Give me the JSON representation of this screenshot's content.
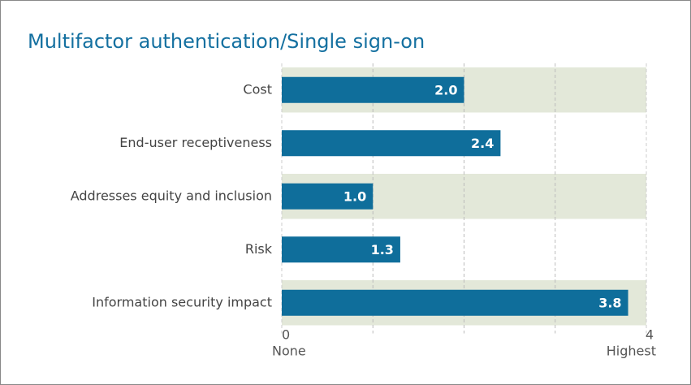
{
  "chart_data": {
    "type": "hbar",
    "title": "Multifactor authentication/Single sign-on",
    "categories": [
      "Cost",
      "End-user receptiveness",
      "Addresses equity and inclusion",
      "Risk",
      "Information security impact"
    ],
    "values": [
      2.0,
      2.4,
      1.0,
      1.3,
      3.8
    ],
    "value_labels": [
      "2.0",
      "2.4",
      "1.0",
      "1.3",
      "3.8"
    ],
    "color": "#0f6e9b",
    "xlim": [
      0,
      4
    ],
    "xticks": [
      0,
      4
    ],
    "xtick_sublabels": [
      "None",
      "Highest"
    ],
    "minor_xticks": [
      1,
      2,
      3
    ],
    "grid": true
  }
}
